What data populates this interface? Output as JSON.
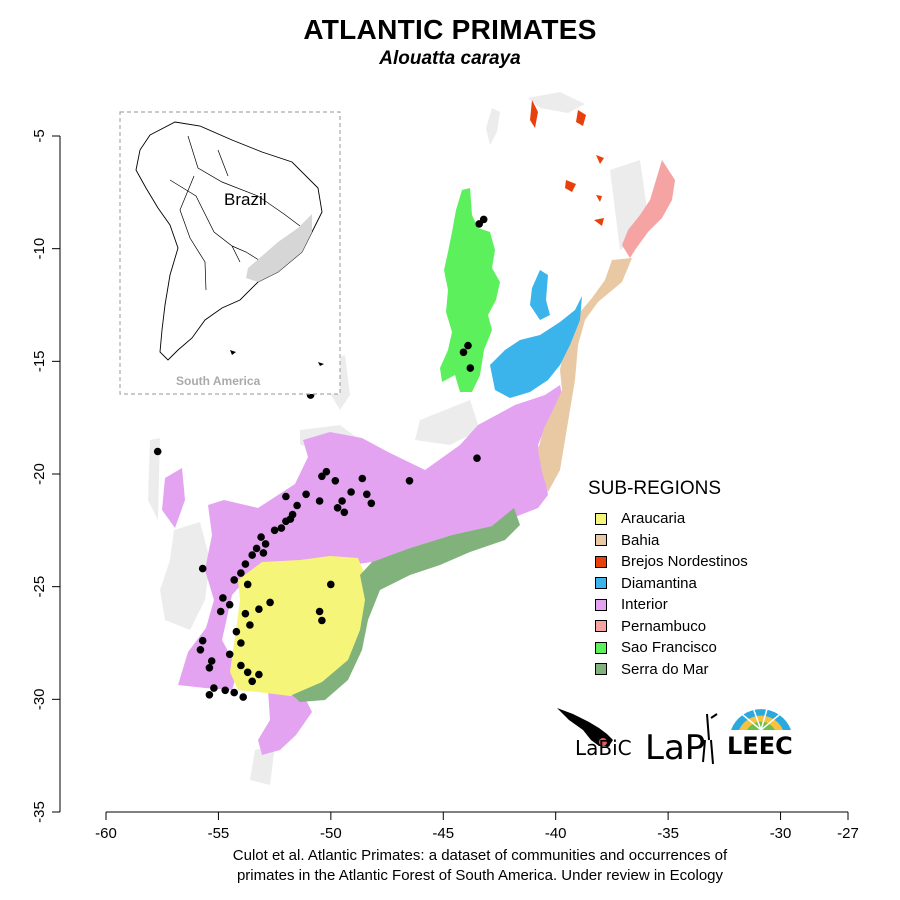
{
  "title": "ATLANTIC PRIMATES",
  "subtitle": "Alouatta caraya",
  "caption": [
    "Culot et al. Atlantic Primates: a dataset of communities and occurrences of",
    "primates in the Atlantic Forest of South America. Under review in Ecology"
  ],
  "x_axis": {
    "ticks": [
      "-60",
      "-55",
      "-50",
      "-45",
      "-40",
      "-35",
      "-30",
      "-27"
    ],
    "values": [
      -60,
      -55,
      -50,
      -45,
      -40,
      -35,
      -30,
      -27
    ]
  },
  "y_axis": {
    "ticks": [
      "-5",
      "-10",
      "-15",
      "-20",
      "-25",
      "-30",
      "-35"
    ],
    "values": [
      -5,
      -10,
      -15,
      -20,
      -25,
      -30,
      -35
    ]
  },
  "inset": {
    "country_label": "Brazil",
    "continent_label": "South America"
  },
  "legend": {
    "title": "SUB-REGIONS",
    "items": [
      {
        "label": "Araucaria",
        "color": "#f5f57a"
      },
      {
        "label": "Bahia",
        "color": "#e8c9a4"
      },
      {
        "label": "Brejos Nordestinos",
        "color": "#e8400a"
      },
      {
        "label": "Diamantina",
        "color": "#3ab4ea"
      },
      {
        "label": "Interior",
        "color": "#e3a3f0"
      },
      {
        "label": "Pernambuco",
        "color": "#f5a3a3"
      },
      {
        "label": "Sao Francisco",
        "color": "#5cf05c"
      },
      {
        "label": "Serra do Mar",
        "color": "#82b27c"
      }
    ]
  },
  "occurrences": [
    [
      -57.7,
      -19.0
    ],
    [
      -43.2,
      -8.7
    ],
    [
      -43.4,
      -8.9
    ],
    [
      -43.9,
      -14.3
    ],
    [
      -44.1,
      -14.6
    ],
    [
      -43.8,
      -15.3
    ],
    [
      -50.9,
      -16.5
    ],
    [
      -43.5,
      -19.3
    ],
    [
      -46.5,
      -20.3
    ],
    [
      -48.6,
      -20.2
    ],
    [
      -50.2,
      -19.9
    ],
    [
      -50.4,
      -20.1
    ],
    [
      -49.8,
      -20.3
    ],
    [
      -49.1,
      -20.8
    ],
    [
      -49.5,
      -21.2
    ],
    [
      -48.2,
      -21.3
    ],
    [
      -48.4,
      -20.9
    ],
    [
      -49.7,
      -21.5
    ],
    [
      -49.4,
      -21.7
    ],
    [
      -50.5,
      -21.2
    ],
    [
      -51.1,
      -20.9
    ],
    [
      -51.5,
      -21.4
    ],
    [
      -51.7,
      -21.8
    ],
    [
      -52.0,
      -22.1
    ],
    [
      -52.5,
      -22.5
    ],
    [
      -51.8,
      -22.0
    ],
    [
      -52.0,
      -21.0
    ],
    [
      -52.2,
      -22.4
    ],
    [
      -52.9,
      -23.1
    ],
    [
      -53.1,
      -22.8
    ],
    [
      -53.3,
      -23.3
    ],
    [
      -53.5,
      -23.6
    ],
    [
      -53.8,
      -24.0
    ],
    [
      -54.0,
      -24.4
    ],
    [
      -53.7,
      -24.9
    ],
    [
      -54.3,
      -24.7
    ],
    [
      -55.7,
      -24.2
    ],
    [
      -53.0,
      -23.5
    ],
    [
      -54.8,
      -25.5
    ],
    [
      -54.5,
      -25.8
    ],
    [
      -54.9,
      -26.1
    ],
    [
      -53.8,
      -26.2
    ],
    [
      -53.6,
      -26.7
    ],
    [
      -53.2,
      -26.0
    ],
    [
      -52.7,
      -25.7
    ],
    [
      -54.2,
      -27.0
    ],
    [
      -54.0,
      -27.5
    ],
    [
      -55.7,
      -27.4
    ],
    [
      -55.8,
      -27.8
    ],
    [
      -54.5,
      -28.0
    ],
    [
      -55.3,
      -28.3
    ],
    [
      -55.4,
      -28.6
    ],
    [
      -54.0,
      -28.5
    ],
    [
      -53.7,
      -28.8
    ],
    [
      -53.2,
      -28.9
    ],
    [
      -53.5,
      -29.2
    ],
    [
      -55.2,
      -29.5
    ],
    [
      -55.4,
      -29.8
    ],
    [
      -54.7,
      -29.6
    ],
    [
      -54.3,
      -29.7
    ],
    [
      -50.4,
      -26.5
    ],
    [
      -50.5,
      -26.1
    ],
    [
      -50.0,
      -24.9
    ],
    [
      -53.9,
      -29.9
    ]
  ]
}
